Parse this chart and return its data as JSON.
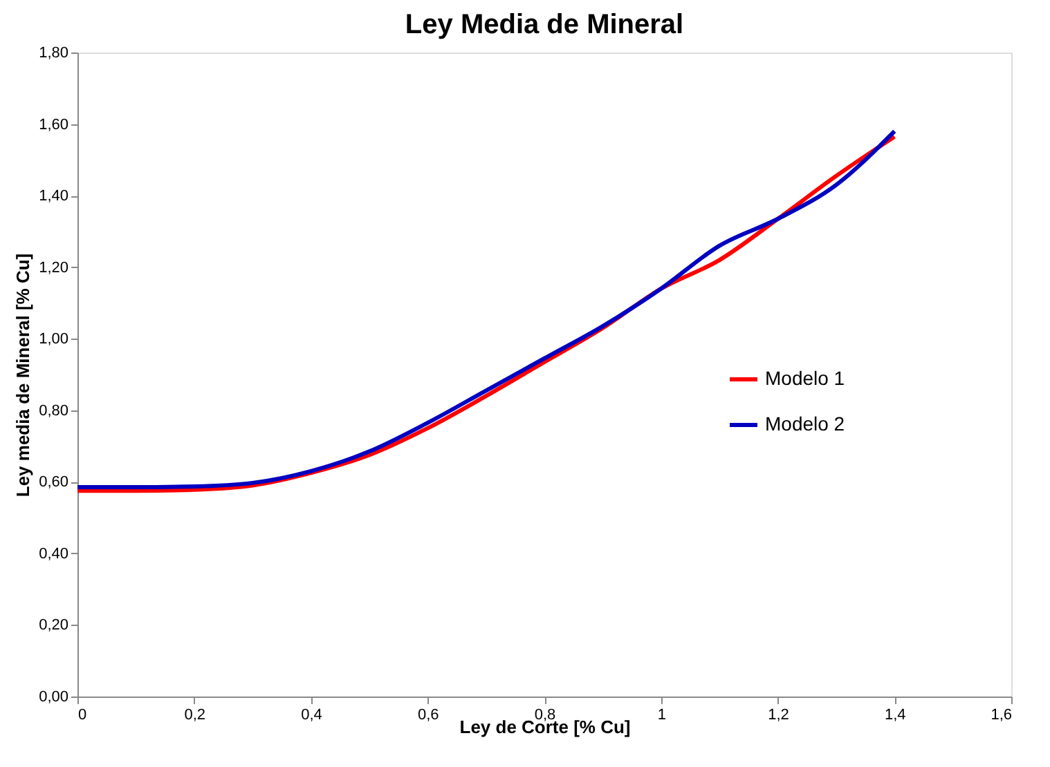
{
  "chart_data": {
    "type": "line",
    "title": "Ley Media de Mineral",
    "xlabel": "Ley de Corte [% Cu]",
    "ylabel": "Ley media de Mineral [% Cu]",
    "x": [
      0,
      0.1,
      0.2,
      0.3,
      0.4,
      0.5,
      0.6,
      0.7,
      0.8,
      0.9,
      1.0,
      1.1,
      1.2,
      1.3,
      1.4
    ],
    "series": [
      {
        "name": "Modelo 1",
        "color": "#ff0000",
        "values": [
          0.575,
          0.575,
          0.578,
          0.59,
          0.625,
          0.675,
          0.75,
          0.84,
          0.935,
          1.03,
          1.14,
          1.22,
          1.335,
          1.455,
          1.565
        ]
      },
      {
        "name": "Modelo 2",
        "color": "#0000c0",
        "values": [
          0.585,
          0.585,
          0.587,
          0.597,
          0.63,
          0.685,
          0.765,
          0.855,
          0.945,
          1.035,
          1.14,
          1.26,
          1.335,
          1.43,
          1.58
        ]
      }
    ],
    "xlim": [
      0,
      1.6
    ],
    "ylim": [
      0,
      1.8
    ],
    "xticks": [
      {
        "value": 0,
        "label": "0"
      },
      {
        "value": 0.2,
        "label": "0,2"
      },
      {
        "value": 0.4,
        "label": "0,4"
      },
      {
        "value": 0.6,
        "label": "0,6"
      },
      {
        "value": 0.8,
        "label": "0,8"
      },
      {
        "value": 1,
        "label": "1"
      },
      {
        "value": 1.2,
        "label": "1,2"
      },
      {
        "value": 1.4,
        "label": "1,4"
      },
      {
        "value": 1.6,
        "label": "1,6"
      }
    ],
    "yticks": [
      {
        "value": 0,
        "label": "0,00"
      },
      {
        "value": 0.2,
        "label": "0,20"
      },
      {
        "value": 0.4,
        "label": "0,40"
      },
      {
        "value": 0.6,
        "label": "0,60"
      },
      {
        "value": 0.8,
        "label": "0,80"
      },
      {
        "value": 1,
        "label": "1,00"
      },
      {
        "value": 1.2,
        "label": "1,20"
      },
      {
        "value": 1.4,
        "label": "1,40"
      },
      {
        "value": 1.6,
        "label": "1,60"
      },
      {
        "value": 1.8,
        "label": "1,80"
      }
    ],
    "grid": false,
    "legend": "right",
    "marker": "none",
    "line_style": "solid"
  }
}
